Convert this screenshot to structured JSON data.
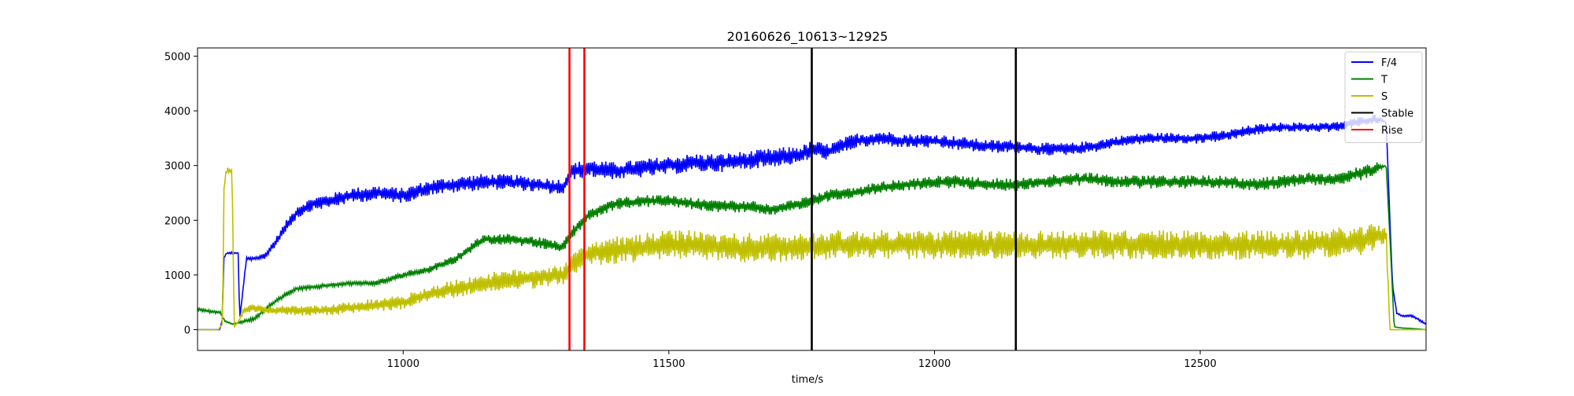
{
  "chart_data": {
    "type": "line",
    "title": "20160626_10613~12925",
    "xlabel": "time/s",
    "ylabel": "",
    "xlim": [
      10613,
      12925
    ],
    "ylim": [
      -380,
      5150
    ],
    "xticks": [
      11000,
      11500,
      12000,
      12500
    ],
    "yticks": [
      0,
      1000,
      2000,
      3000,
      4000,
      5000
    ],
    "grid": false,
    "legend_position": "top-right",
    "legend": [
      {
        "label": "F/4",
        "color": "#0000ff",
        "kind": "series"
      },
      {
        "label": "T",
        "color": "#008000",
        "kind": "series"
      },
      {
        "label": "S",
        "color": "#bfbf00",
        "kind": "series"
      },
      {
        "label": "Stable",
        "color": "#000000",
        "kind": "vline"
      },
      {
        "label": "Rise",
        "color": "#ff0000",
        "kind": "vline"
      }
    ],
    "series": [
      {
        "name": "F/4",
        "color": "#0000ff",
        "x": [
          10613,
          10625,
          10640,
          10655,
          10660,
          10662,
          10668,
          10680,
          10690,
          10692,
          10705,
          10725,
          10740,
          10760,
          10780,
          10800,
          10830,
          10860,
          10900,
          10950,
          11000,
          11050,
          11100,
          11150,
          11200,
          11250,
          11300,
          11320,
          11350,
          11400,
          11450,
          11500,
          11550,
          11600,
          11650,
          11700,
          11750,
          11770,
          11800,
          11850,
          11900,
          11950,
          12000,
          12050,
          12100,
          12150,
          12200,
          12250,
          12300,
          12350,
          12400,
          12450,
          12500,
          12550,
          12600,
          12650,
          12700,
          12750,
          12800,
          12830,
          12850,
          12857,
          12862,
          12870,
          12880,
          12900,
          12925
        ],
        "y": [
          0,
          0,
          0,
          0,
          200,
          1300,
          1400,
          1400,
          1400,
          150,
          1300,
          1300,
          1350,
          1600,
          1900,
          2150,
          2300,
          2350,
          2450,
          2500,
          2450,
          2600,
          2650,
          2700,
          2700,
          2650,
          2600,
          2900,
          2950,
          2900,
          2950,
          3000,
          3050,
          3050,
          3100,
          3150,
          3200,
          3300,
          3250,
          3450,
          3500,
          3450,
          3450,
          3400,
          3350,
          3350,
          3300,
          3300,
          3350,
          3450,
          3500,
          3500,
          3500,
          3550,
          3650,
          3700,
          3700,
          3700,
          3800,
          3850,
          3800,
          2000,
          800,
          300,
          250,
          250,
          100
        ],
        "noise": [
          0,
          0,
          0,
          0,
          0,
          0,
          20,
          20,
          0,
          0,
          30,
          40,
          60,
          80,
          100,
          120,
          120,
          130,
          140,
          140,
          140,
          140,
          150,
          150,
          140,
          140,
          150,
          160,
          160,
          160,
          170,
          170,
          170,
          170,
          170,
          170,
          170,
          160,
          150,
          140,
          140,
          130,
          130,
          130,
          120,
          120,
          120,
          110,
          110,
          100,
          100,
          100,
          100,
          100,
          100,
          90,
          90,
          90,
          90,
          90,
          0,
          0,
          0,
          20,
          20,
          20,
          20
        ]
      },
      {
        "name": "T",
        "color": "#008000",
        "x": [
          10613,
          10625,
          10640,
          10655,
          10665,
          10680,
          10700,
          10720,
          10750,
          10780,
          10800,
          10850,
          10900,
          10950,
          11000,
          11050,
          11100,
          11150,
          11200,
          11250,
          11300,
          11320,
          11350,
          11400,
          11450,
          11500,
          11550,
          11600,
          11650,
          11700,
          11750,
          11770,
          11800,
          11850,
          11900,
          11950,
          12000,
          12050,
          12100,
          12150,
          12200,
          12250,
          12300,
          12350,
          12400,
          12450,
          12500,
          12550,
          12600,
          12650,
          12700,
          12750,
          12800,
          12830,
          12850,
          12858,
          12865,
          12880,
          12900,
          12925
        ],
        "y": [
          380,
          350,
          330,
          320,
          150,
          100,
          150,
          200,
          450,
          650,
          750,
          800,
          850,
          850,
          1000,
          1100,
          1300,
          1650,
          1650,
          1600,
          1500,
          1800,
          2100,
          2300,
          2350,
          2350,
          2300,
          2250,
          2250,
          2200,
          2300,
          2350,
          2450,
          2500,
          2600,
          2650,
          2700,
          2700,
          2650,
          2650,
          2700,
          2750,
          2750,
          2700,
          2700,
          2700,
          2700,
          2700,
          2650,
          2700,
          2750,
          2750,
          2850,
          2950,
          3000,
          1500,
          50,
          30,
          20,
          0
        ],
        "noise": [
          30,
          30,
          30,
          30,
          20,
          10,
          30,
          40,
          40,
          40,
          40,
          40,
          40,
          50,
          60,
          70,
          80,
          90,
          100,
          100,
          100,
          110,
          110,
          110,
          110,
          110,
          110,
          110,
          110,
          110,
          110,
          110,
          110,
          110,
          110,
          110,
          120,
          120,
          120,
          120,
          120,
          120,
          120,
          120,
          120,
          120,
          120,
          120,
          120,
          120,
          120,
          120,
          130,
          130,
          0,
          0,
          0,
          0,
          0,
          0
        ]
      },
      {
        "name": "S",
        "color": "#bfbf00",
        "x": [
          10613,
          10625,
          10640,
          10652,
          10660,
          10663,
          10668,
          10675,
          10678,
          10682,
          10690,
          10700,
          10720,
          10750,
          10800,
          10850,
          10900,
          10950,
          11000,
          11050,
          11100,
          11150,
          11200,
          11250,
          11300,
          11320,
          11350,
          11400,
          11450,
          11500,
          11550,
          11600,
          11650,
          11700,
          11750,
          11800,
          11850,
          11900,
          11950,
          12000,
          12050,
          12100,
          12150,
          12200,
          12250,
          12300,
          12350,
          12400,
          12450,
          12500,
          12550,
          12600,
          12650,
          12700,
          12750,
          12800,
          12830,
          12850,
          12857,
          12862,
          12925
        ],
        "y": [
          0,
          0,
          0,
          0,
          100,
          2700,
          2900,
          2900,
          2900,
          50,
          150,
          350,
          400,
          350,
          350,
          350,
          400,
          450,
          500,
          650,
          750,
          850,
          900,
          950,
          1000,
          1200,
          1400,
          1450,
          1500,
          1550,
          1550,
          1500,
          1500,
          1500,
          1500,
          1550,
          1550,
          1550,
          1550,
          1550,
          1550,
          1550,
          1550,
          1550,
          1550,
          1550,
          1550,
          1550,
          1550,
          1550,
          1550,
          1550,
          1550,
          1550,
          1600,
          1600,
          1700,
          1750,
          0,
          0,
          0
        ],
        "noise": [
          0,
          0,
          0,
          0,
          0,
          60,
          60,
          60,
          0,
          0,
          0,
          60,
          80,
          80,
          90,
          100,
          110,
          120,
          130,
          150,
          170,
          180,
          190,
          200,
          200,
          200,
          230,
          250,
          260,
          270,
          270,
          270,
          270,
          270,
          270,
          270,
          270,
          270,
          270,
          270,
          270,
          270,
          270,
          270,
          270,
          270,
          270,
          270,
          270,
          270,
          270,
          270,
          270,
          270,
          270,
          270,
          250,
          200,
          0,
          0,
          0
        ]
      }
    ],
    "vlines": [
      {
        "name": "Rise",
        "x": 11313,
        "color": "#ff0000"
      },
      {
        "name": "Rise",
        "x": 11341,
        "color": "#ff0000"
      },
      {
        "name": "Stable",
        "x": 11769,
        "color": "#000000"
      },
      {
        "name": "Stable",
        "x": 12153,
        "color": "#000000"
      }
    ]
  }
}
